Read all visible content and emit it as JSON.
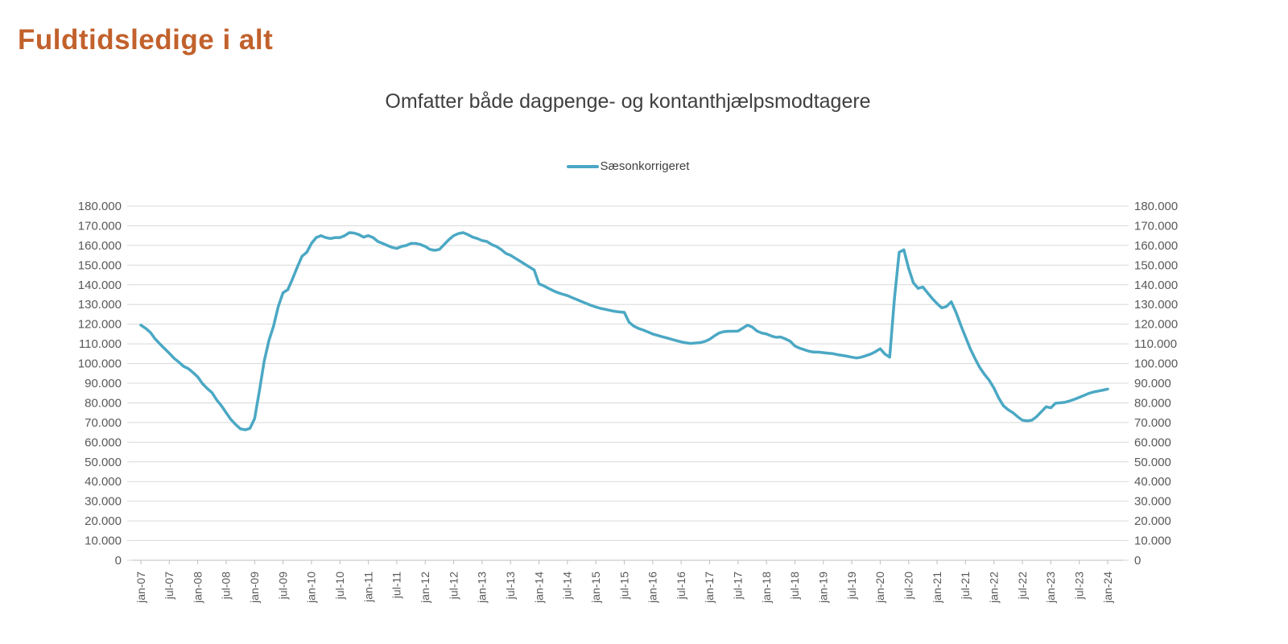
{
  "page": {
    "title": "Fuldtidsledige i alt"
  },
  "chart": {
    "subtitle": "Omfatter både dagpenge- og kontanthjælpsmodtagere",
    "legend": {
      "label": "Sæsonkorrigeret"
    }
  },
  "colors": {
    "title": "#C2612C",
    "subtitle_text": "#3F3F3F",
    "series_line": "#4BA8C4",
    "axis_text": "#595959",
    "gridline": "#D9D9D9",
    "axis_line": "#BFBFBF",
    "background": "#FFFFFF"
  },
  "chart_data": {
    "type": "line",
    "title": "Omfatter både dagpenge- og kontanthjælpsmodtagere",
    "legend_position": "top-center",
    "grid": "horizontal",
    "y_axis_sides": "both",
    "ylim": [
      0,
      180000
    ],
    "y_tick_step": 10000,
    "y_tick_labels": [
      "0",
      "10.000",
      "20.000",
      "30.000",
      "40.000",
      "50.000",
      "60.000",
      "70.000",
      "80.000",
      "90.000",
      "100.000",
      "110.000",
      "120.000",
      "130.000",
      "140.000",
      "150.000",
      "160.000",
      "170.000",
      "180.000"
    ],
    "x_interval": "monthly",
    "x_start": "jan-07",
    "x_end": "jan-24",
    "x_tick_every": 6,
    "x_tick_labels": [
      "jan-07",
      "jul-07",
      "jan-08",
      "jul-08",
      "jan-09",
      "jul-09",
      "jan-10",
      "jul-10",
      "jan-11",
      "jul-11",
      "jan-12",
      "jul-12",
      "jan-13",
      "jul-13",
      "jan-14",
      "jul-14",
      "jan-15",
      "jul-15",
      "jan-16",
      "jul-16",
      "jan-17",
      "jul-17",
      "jan-18",
      "jul-18",
      "jan-19",
      "jul-19",
      "jan-20",
      "jul-20",
      "jan-21",
      "jul-21",
      "jan-22",
      "jul-22",
      "jan-23",
      "jul-23",
      "jan-24"
    ],
    "series": [
      {
        "name": "Sæsonkorrigeret",
        "color": "#4BA8C4",
        "values": [
          119500,
          117900,
          115800,
          112500,
          110000,
          107600,
          105200,
          102700,
          100700,
          98600,
          97400,
          95400,
          93200,
          89800,
          87300,
          85200,
          81500,
          78500,
          75000,
          71500,
          69000,
          66800,
          66300,
          67000,
          72000,
          86000,
          101000,
          111600,
          119000,
          129000,
          136000,
          137500,
          143000,
          149000,
          154500,
          156500,
          161000,
          164000,
          165000,
          164000,
          163500,
          164000,
          164000,
          165000,
          166500,
          166300,
          165500,
          164200,
          165000,
          164000,
          162000,
          161000,
          160000,
          159000,
          158500,
          159500,
          160000,
          161000,
          161000,
          160500,
          159500,
          158000,
          157500,
          158000,
          160500,
          163000,
          165000,
          166000,
          166500,
          165500,
          164200,
          163500,
          162500,
          162000,
          160500,
          159500,
          158000,
          156000,
          155000,
          153500,
          152000,
          150500,
          149000,
          147500,
          140500,
          139500,
          138200,
          137000,
          136000,
          135200,
          134500,
          133500,
          132500,
          131500,
          130500,
          129500,
          128700,
          128000,
          127500,
          127000,
          126500,
          126200,
          126000,
          121000,
          119000,
          117800,
          117000,
          116000,
          115000,
          114300,
          113600,
          113000,
          112300,
          111600,
          111000,
          110500,
          110200,
          110400,
          110600,
          111200,
          112300,
          114000,
          115500,
          116200,
          116400,
          116400,
          116500,
          118000,
          119500,
          118500,
          116500,
          115500,
          115000,
          114000,
          113300,
          113500,
          112500,
          111300,
          108900,
          107800,
          107000,
          106200,
          105800,
          105800,
          105500,
          105200,
          105000,
          104500,
          104100,
          103700,
          103200,
          102800,
          103200,
          104000,
          104800,
          106000,
          107500,
          104800,
          103200,
          133000,
          156500,
          157800,
          148400,
          141000,
          138200,
          138900,
          135900,
          133000,
          130400,
          128300,
          129000,
          131400,
          126000,
          119500,
          113500,
          107500,
          102500,
          98000,
          94500,
          91500,
          87500,
          82500,
          78500,
          76500,
          75000,
          73000,
          71200,
          70800,
          71200,
          73000,
          75500,
          78000,
          77500,
          79800,
          80000,
          80300,
          81000,
          81800,
          82800,
          83800,
          84800,
          85500,
          86000,
          86500,
          87000
        ]
      }
    ]
  }
}
